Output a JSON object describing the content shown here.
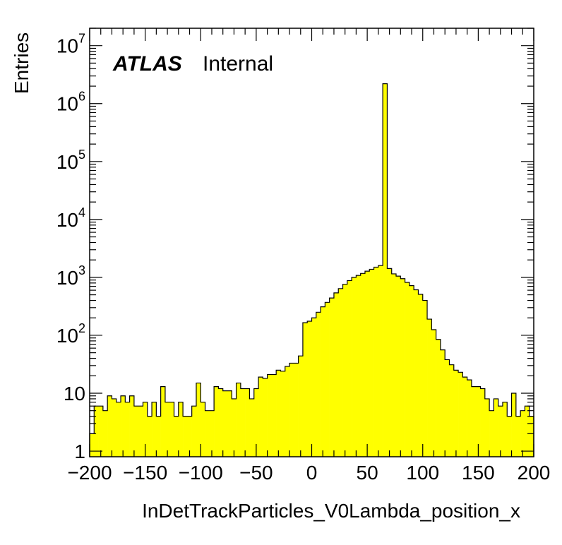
{
  "chart_data": {
    "type": "bar",
    "title": "",
    "xlabel": "InDetTrackParticles_V0Lambda_position_x",
    "ylabel": "Entries",
    "label_brand": "ATLAS",
    "label_status": "Internal",
    "xlim": [
      -200,
      200
    ],
    "ylim": [
      0.8,
      20000000
    ],
    "log_y": true,
    "grid": false,
    "fill_color": "#ffff00",
    "line_color": "#000000",
    "x_ticks": [
      -200,
      -150,
      -100,
      -50,
      0,
      50,
      100,
      150,
      200
    ],
    "x_tick_labels": [
      "−200",
      "−150",
      "−100",
      "−50",
      "0",
      "50",
      "100",
      "150",
      "200"
    ],
    "y_ticks": [
      {
        "value": 1,
        "base": "1",
        "exp": ""
      },
      {
        "value": 10,
        "base": "10",
        "exp": ""
      },
      {
        "value": 100,
        "base": "10",
        "exp": "2"
      },
      {
        "value": 1000,
        "base": "10",
        "exp": "3"
      },
      {
        "value": 10000,
        "base": "10",
        "exp": "4"
      },
      {
        "value": 100000,
        "base": "10",
        "exp": "5"
      },
      {
        "value": 1000000,
        "base": "10",
        "exp": "6"
      },
      {
        "value": 10000000,
        "base": "10",
        "exp": "7"
      }
    ],
    "bin_edges_start": -200,
    "bin_width": 4,
    "values": [
      2,
      6,
      6,
      5,
      9,
      8,
      7,
      9,
      7,
      9,
      6,
      6,
      7,
      4,
      7,
      4,
      13,
      7,
      7,
      4,
      7,
      4,
      4,
      6,
      15,
      7,
      5,
      5,
      13,
      12,
      11,
      11,
      8,
      15,
      12,
      12,
      8,
      12,
      19,
      18,
      21,
      21,
      25,
      24,
      29,
      33,
      33,
      44,
      165,
      175,
      200,
      250,
      310,
      370,
      440,
      540,
      640,
      760,
      880,
      1000,
      1080,
      1170,
      1280,
      1380,
      1500,
      1600,
      2200000,
      1420,
      1150,
      1050,
      950,
      820,
      720,
      610,
      510,
      400,
      190,
      125,
      85,
      56,
      38,
      31,
      25,
      23,
      19,
      17,
      13,
      13,
      12,
      8,
      5,
      8,
      6,
      7,
      4,
      10,
      4,
      5,
      6,
      4
    ]
  }
}
